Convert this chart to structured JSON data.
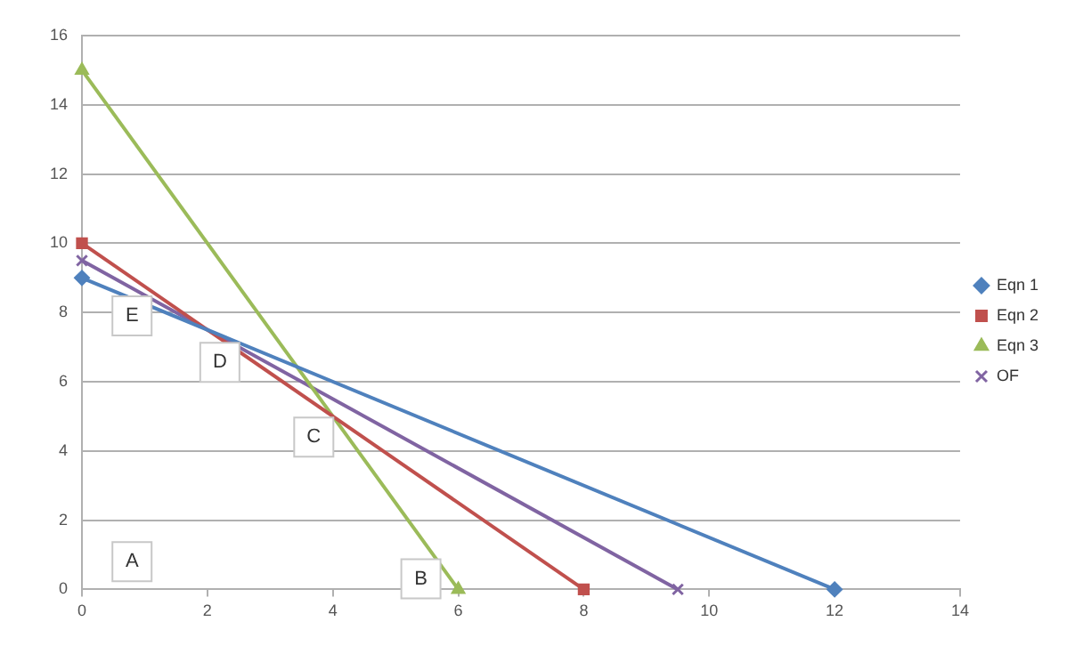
{
  "chart_data": {
    "type": "line",
    "xlim": [
      0,
      14
    ],
    "xticks": [
      0,
      2,
      4,
      6,
      8,
      10,
      12,
      14
    ],
    "ylim": [
      0,
      16
    ],
    "yticks": [
      0,
      2,
      4,
      6,
      8,
      10,
      12,
      14,
      16
    ],
    "grid": "y",
    "legend": "right",
    "series": [
      {
        "name": "Eqn 1",
        "color": "#4f81bd",
        "marker": "diamond",
        "x": [
          0,
          12
        ],
        "values": [
          9,
          0
        ]
      },
      {
        "name": "Eqn 2",
        "color": "#c0504d",
        "marker": "square",
        "x": [
          0,
          8
        ],
        "values": [
          10,
          0
        ]
      },
      {
        "name": "Eqn 3",
        "color": "#9bbb59",
        "marker": "triangle",
        "x": [
          0,
          6
        ],
        "values": [
          15,
          0
        ]
      },
      {
        "name": "OF",
        "color": "#8064a2",
        "marker": "cross",
        "x": [
          0,
          9.5
        ],
        "values": [
          9.5,
          0
        ]
      }
    ],
    "annotations": [
      "A",
      "B",
      "C",
      "D",
      "E"
    ]
  }
}
